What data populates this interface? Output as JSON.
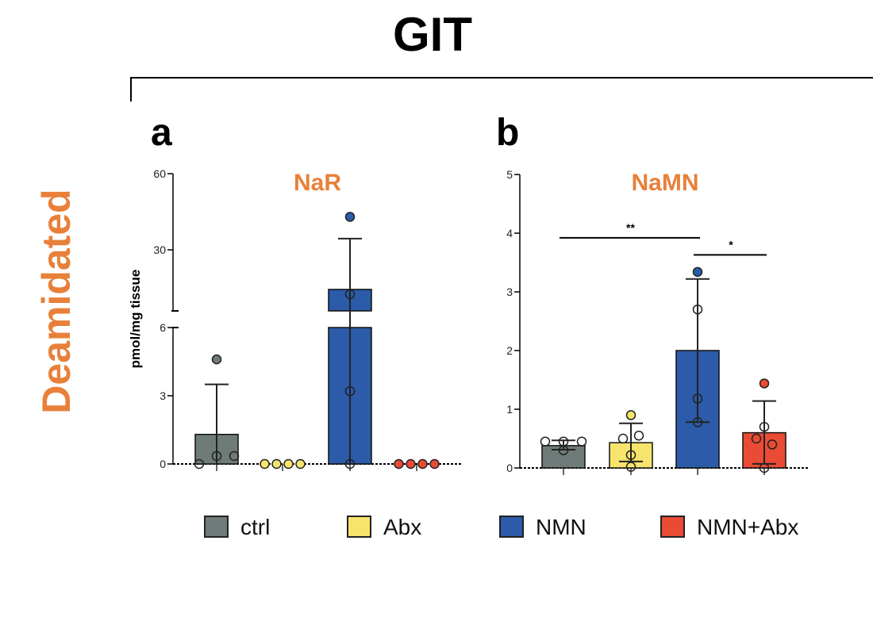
{
  "figure_title": "GIT",
  "row_label": "Deamidated",
  "colors": {
    "ctrl": "#6f7b79",
    "Abx": "#f7e46c",
    "NMN": "#2b5ba9",
    "NMN+Abx": "#e94b35",
    "title_orange": "#e8803a"
  },
  "legend": [
    {
      "label": "ctrl",
      "color": "#6f7b79"
    },
    {
      "label": "Abx",
      "color": "#f7e46c"
    },
    {
      "label": "NMN",
      "color": "#2b5ba9"
    },
    {
      "label": "NMN+Abx",
      "color": "#e94b35"
    }
  ],
  "chart_data": [
    {
      "panel": "a",
      "type": "bar",
      "title": "NaR",
      "ylabel": "pmol/mg tissue",
      "y_axis_break": true,
      "ylim_lower": [
        0,
        6
      ],
      "ylim_upper": [
        6,
        60
      ],
      "yticks_lower": [
        "0",
        "3",
        "6"
      ],
      "yticks_upper": [
        "30",
        "60"
      ],
      "categories": [
        "ctrl",
        "Abx",
        "NMN",
        "NMN+Abx"
      ],
      "values": [
        1.3,
        0,
        14.4,
        0
      ],
      "error_upper": [
        3.5,
        0,
        34.4,
        0
      ],
      "error_lower": [
        0,
        0,
        0,
        0
      ],
      "points": [
        [
          4.6,
          0.35,
          0.35,
          0
        ],
        [
          0,
          0,
          0,
          0
        ],
        [
          43,
          12.5,
          3.2,
          0
        ],
        [
          0,
          0,
          0,
          0
        ]
      ],
      "significance": []
    },
    {
      "panel": "b",
      "type": "bar",
      "title": "NaMN",
      "ylabel": "",
      "ylim": [
        0,
        5
      ],
      "yticks": [
        "0",
        "1",
        "2",
        "3",
        "4",
        "5"
      ],
      "categories": [
        "ctrl",
        "Abx",
        "NMN",
        "NMN+Abx"
      ],
      "values": [
        0.38,
        0.43,
        2.0,
        0.6
      ],
      "error_upper": [
        0.47,
        0.76,
        3.22,
        1.14
      ],
      "error_lower": [
        0.31,
        0.11,
        0.78,
        0.07
      ],
      "points": [
        [
          0.45,
          0.45,
          0.3,
          0.45
        ],
        [
          0.9,
          0.55,
          0.5,
          0.22,
          0.02
        ],
        [
          3.34,
          2.7,
          1.18,
          0.78
        ],
        [
          1.44,
          0.7,
          0.5,
          0.4,
          0.0
        ]
      ],
      "significance": [
        {
          "from": "ctrl",
          "to": "NMN",
          "y": 3.92,
          "label": "**"
        },
        {
          "from": "NMN",
          "to": "NMN+Abx",
          "y": 3.63,
          "label": "*"
        }
      ]
    }
  ]
}
